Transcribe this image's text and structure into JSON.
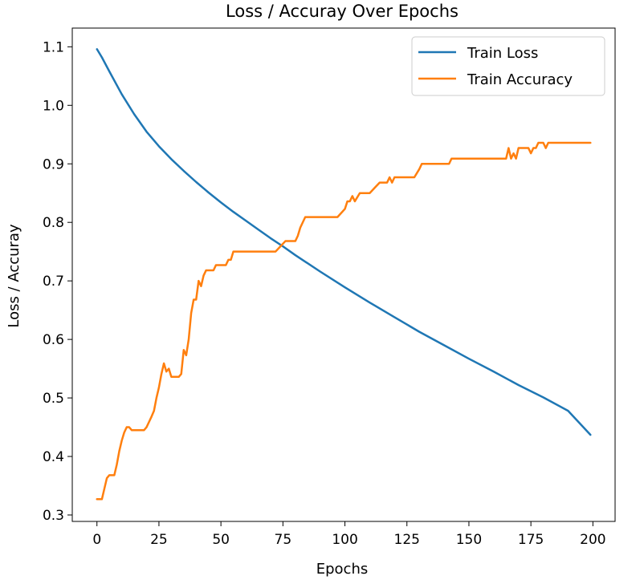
{
  "chart_data": {
    "type": "line",
    "title": "Loss / Accuray Over Epochs",
    "xlabel": "Epochs",
    "ylabel": "Loss / Accuray",
    "xlim": [
      -9.95,
      208.95
    ],
    "ylim": [
      0.289,
      1.132
    ],
    "x_ticks": [
      0,
      25,
      50,
      75,
      100,
      125,
      150,
      175,
      200
    ],
    "x_tick_labels": [
      "0",
      "25",
      "50",
      "75",
      "100",
      "125",
      "150",
      "175",
      "200"
    ],
    "y_ticks": [
      0.3,
      0.4,
      0.5,
      0.6,
      0.7,
      0.8,
      0.9,
      1.0,
      1.1
    ],
    "y_tick_labels": [
      "0.3",
      "0.4",
      "0.5",
      "0.6",
      "0.7",
      "0.8",
      "0.9",
      "1.0",
      "1.1"
    ],
    "grid": false,
    "legend_position": "top-right",
    "series": [
      {
        "name": "Train Loss",
        "color": "#1f77b4",
        "x": [
          0,
          2,
          5,
          10,
          15,
          20,
          25,
          30,
          35,
          40,
          45,
          50,
          55,
          60,
          65,
          70,
          75,
          80,
          90,
          100,
          110,
          120,
          130,
          140,
          150,
          160,
          170,
          180,
          190,
          199
        ],
        "y": [
          1.096,
          1.082,
          1.058,
          1.019,
          0.985,
          0.955,
          0.93,
          0.908,
          0.888,
          0.869,
          0.851,
          0.834,
          0.818,
          0.803,
          0.788,
          0.773,
          0.759,
          0.744,
          0.716,
          0.689,
          0.663,
          0.638,
          0.613,
          0.59,
          0.567,
          0.545,
          0.522,
          0.501,
          0.478,
          0.437
        ]
      },
      {
        "name": "Train Accuracy",
        "color": "#ff7f0e",
        "x": [
          0,
          1,
          2,
          3,
          4,
          5,
          6,
          7,
          8,
          9,
          10,
          11,
          12,
          13,
          14,
          15,
          16,
          17,
          18,
          19,
          20,
          21,
          22,
          23,
          24,
          25,
          26,
          27,
          28,
          29,
          30,
          31,
          32,
          33,
          34,
          35,
          36,
          37,
          38,
          39,
          40,
          41,
          42,
          43,
          44,
          45,
          46,
          47,
          48,
          49,
          50,
          51,
          52,
          53,
          54,
          55,
          60,
          70,
          72,
          74,
          76,
          78,
          79,
          80,
          81,
          82,
          84,
          86,
          90,
          95,
          97,
          100,
          101,
          102,
          103,
          104,
          106,
          108,
          110,
          112,
          114,
          116,
          117,
          118,
          119,
          120,
          125,
          128,
          130,
          131,
          133,
          135,
          140,
          142,
          143,
          150,
          160,
          165,
          166,
          167,
          168,
          169,
          170,
          172,
          174,
          175,
          176,
          177,
          178,
          179,
          180,
          181,
          182,
          183,
          184,
          185,
          190,
          199
        ],
        "y": [
          0.327,
          0.327,
          0.327,
          0.345,
          0.363,
          0.368,
          0.368,
          0.368,
          0.386,
          0.409,
          0.427,
          0.441,
          0.45,
          0.45,
          0.445,
          0.445,
          0.445,
          0.445,
          0.445,
          0.445,
          0.45,
          0.459,
          0.468,
          0.478,
          0.5,
          0.518,
          0.541,
          0.559,
          0.545,
          0.55,
          0.536,
          0.536,
          0.536,
          0.536,
          0.541,
          0.582,
          0.573,
          0.6,
          0.645,
          0.668,
          0.668,
          0.7,
          0.691,
          0.709,
          0.718,
          0.718,
          0.718,
          0.718,
          0.727,
          0.727,
          0.727,
          0.727,
          0.727,
          0.736,
          0.736,
          0.75,
          0.75,
          0.75,
          0.75,
          0.759,
          0.768,
          0.768,
          0.768,
          0.768,
          0.777,
          0.791,
          0.809,
          0.809,
          0.809,
          0.809,
          0.809,
          0.823,
          0.836,
          0.836,
          0.845,
          0.836,
          0.85,
          0.85,
          0.85,
          0.859,
          0.868,
          0.868,
          0.868,
          0.877,
          0.868,
          0.877,
          0.877,
          0.877,
          0.891,
          0.9,
          0.9,
          0.9,
          0.9,
          0.9,
          0.909,
          0.909,
          0.909,
          0.909,
          0.927,
          0.909,
          0.918,
          0.909,
          0.927,
          0.927,
          0.927,
          0.918,
          0.927,
          0.927,
          0.936,
          0.936,
          0.936,
          0.927,
          0.936,
          0.936,
          0.936,
          0.936,
          0.936,
          0.936
        ]
      }
    ]
  }
}
